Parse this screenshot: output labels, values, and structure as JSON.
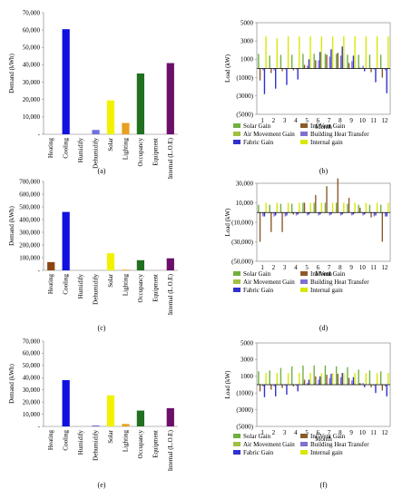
{
  "chart_data": [
    {
      "id": "a",
      "type": "bar",
      "caption": "(a)",
      "categories": [
        "Heating",
        "Cooling",
        "Humidify",
        "Dehumidify",
        "Solar",
        "Lighting",
        "Occupancy",
        "Equipment",
        "Internal (L.O.E)"
      ],
      "values": [
        0,
        60500,
        0,
        2500,
        19500,
        6500,
        35000,
        0,
        41000
      ],
      "colors": [
        "#8b4513",
        "#1010e0",
        "#7fb2e5",
        "#7070e0",
        "#f2f200",
        "#e8a020",
        "#207020",
        "#9090d0",
        "#6a0f6a"
      ],
      "ylabel": "Demand (kWh)",
      "ylim": [
        0,
        70000
      ],
      "yticks": [
        "-",
        "10,000",
        "20,000",
        "30,000",
        "40,000",
        "50,000",
        "60,000",
        "70,000"
      ]
    },
    {
      "id": "b",
      "type": "bar",
      "caption": "(b)",
      "xlabel": "Month",
      "ylabel": "Load (kW)",
      "ylim": [
        -5000,
        5000
      ],
      "yticks": [
        "(5000)",
        "(3000)",
        "(1000)",
        "1000",
        "3000",
        "5000"
      ],
      "categories": [
        "1",
        "2",
        "3",
        "4",
        "5",
        "6",
        "7",
        "8",
        "9",
        "10",
        "11",
        "12"
      ],
      "series": [
        {
          "name": "Solar Gain",
          "color": "#70b040",
          "values": [
            1600,
            1400,
            1500,
            1500,
            1600,
            1600,
            1600,
            1600,
            1500,
            1500,
            1500,
            1500
          ]
        },
        {
          "name": "Inf/Vent Gain",
          "color": "#8b5a2b",
          "values": [
            -1300,
            -500,
            -300,
            -200,
            400,
            900,
            1500,
            1700,
            600,
            100,
            -400,
            -1000
          ]
        },
        {
          "name": "Air Movement Gain",
          "color": "#a0c040",
          "values": [
            0,
            0,
            0,
            0,
            0,
            0,
            0,
            0,
            0,
            0,
            0,
            0
          ]
        },
        {
          "name": "Building Heat Transfer",
          "color": "#8070d0",
          "values": [
            -200,
            -200,
            -100,
            -100,
            300,
            900,
            1300,
            1400,
            800,
            300,
            -100,
            -200
          ]
        },
        {
          "name": "Fabric Gain",
          "color": "#3030d0",
          "values": [
            -2800,
            -2200,
            -1800,
            -1200,
            1000,
            1800,
            2100,
            2400,
            1400,
            -300,
            -1500,
            -2700
          ]
        },
        {
          "name": "Internal gain",
          "color": "#d8e800",
          "values": [
            3500,
            3300,
            3500,
            3500,
            3500,
            3500,
            3500,
            3500,
            3500,
            3500,
            3500,
            3500
          ]
        }
      ],
      "legend": [
        "Solar Gain",
        "Inf/Vent Gain",
        "Air Movement Gain",
        "Building Heat Transfer",
        "Fabric Gain",
        "Internal gain"
      ]
    },
    {
      "id": "c",
      "type": "bar",
      "caption": "(c)",
      "categories": [
        "Heating",
        "Cooling",
        "Humidify",
        "Dehumidify",
        "Solar",
        "Lighting",
        "Occupancy",
        "Equipment",
        "Internal (L.O.E)"
      ],
      "values": [
        65000,
        460000,
        0,
        0,
        135000,
        5000,
        80000,
        0,
        95000
      ],
      "colors": [
        "#8b4513",
        "#1010e0",
        "#7fb2e5",
        "#7070e0",
        "#f2f200",
        "#e8a020",
        "#207020",
        "#9090d0",
        "#6a0f6a"
      ],
      "ylabel": "Demand (kWh)",
      "ylim": [
        0,
        700000
      ],
      "yticks": [
        "-",
        "100,000",
        "200,000",
        "300,000",
        "400,000",
        "500,000",
        "600,000",
        "700,000"
      ]
    },
    {
      "id": "d",
      "type": "bar",
      "caption": "(d)",
      "xlabel": "Month",
      "ylabel": "Load (kW)",
      "ylim": [
        -50000,
        30000
      ],
      "yticks": [
        "(50,000)",
        "(30,000)",
        "(10,000)",
        "10,000",
        "30,000"
      ],
      "categories": [
        "1",
        "2",
        "3",
        "4",
        "5",
        "6",
        "7",
        "8",
        "9",
        "10",
        "11",
        "12"
      ],
      "series": [
        {
          "name": "Solar Gain",
          "color": "#70b040",
          "values": [
            8000,
            8000,
            9000,
            9000,
            10000,
            10000,
            10000,
            10000,
            9000,
            8000,
            8000,
            8000
          ]
        },
        {
          "name": "Inf/Vent Gain",
          "color": "#8b5a2b",
          "values": [
            -30000,
            -20000,
            -20000,
            -2000,
            10000,
            18000,
            27000,
            35000,
            15000,
            5000,
            -5000,
            -30000
          ]
        },
        {
          "name": "Air Movement Gain",
          "color": "#a0c040",
          "values": [
            0,
            0,
            0,
            0,
            0,
            0,
            0,
            0,
            0,
            0,
            0,
            0
          ]
        },
        {
          "name": "Building Heat Transfer",
          "color": "#8070d0",
          "values": [
            -4000,
            -4000,
            -4000,
            -3000,
            -3000,
            -3000,
            -3000,
            -3000,
            -3000,
            -3000,
            -4000,
            -4000
          ]
        },
        {
          "name": "Fabric Gain",
          "color": "#3030d0",
          "values": [
            -4000,
            -3000,
            -3000,
            -2000,
            -2000,
            -2000,
            -2000,
            -2000,
            -2000,
            -2000,
            -3000,
            -4000
          ]
        },
        {
          "name": "Internal gain",
          "color": "#d8e800",
          "values": [
            10000,
            10000,
            10000,
            10000,
            10000,
            10000,
            10000,
            10000,
            10000,
            10000,
            10000,
            10000
          ]
        }
      ],
      "legend": [
        "Solar Gain",
        "Inf/Vent Gain",
        "Air Movement Gain",
        "Building Heat Transfer",
        "Fabric Gain",
        "Internal gain"
      ]
    },
    {
      "id": "e",
      "type": "bar",
      "caption": "(e)",
      "categories": [
        "Heating",
        "Cooling",
        "Humidify",
        "Dehumidify",
        "Solar",
        "Lighting",
        "Occupancy",
        "Equipment",
        "Internal (L.O.E)"
      ],
      "values": [
        0,
        38000,
        0,
        800,
        25500,
        2000,
        13000,
        0,
        15000
      ],
      "colors": [
        "#8b4513",
        "#1010e0",
        "#7fb2e5",
        "#7070e0",
        "#f2f200",
        "#e8a020",
        "#207020",
        "#9090d0",
        "#6a0f6a"
      ],
      "ylabel": "Demand (kWh)",
      "ylim": [
        0,
        70000
      ],
      "yticks": [
        "-",
        "10,000",
        "20,000",
        "30,000",
        "40,000",
        "50,000",
        "60,000",
        "70,000"
      ]
    },
    {
      "id": "f",
      "type": "bar",
      "caption": "(f)",
      "xlabel": "Month",
      "ylabel": "Load (kW)",
      "ylim": [
        -5000,
        5000
      ],
      "yticks": [
        "(5000)",
        "(3000)",
        "(1000)",
        "1000",
        "3000",
        "5000"
      ],
      "categories": [
        "1",
        "2",
        "3",
        "4",
        "5",
        "6",
        "7",
        "8",
        "9",
        "10",
        "11",
        "12"
      ],
      "series": [
        {
          "name": "Solar Gain",
          "color": "#70b040",
          "values": [
            1600,
            1700,
            2000,
            2200,
            2300,
            2300,
            2300,
            2200,
            2100,
            1800,
            1700,
            1600
          ]
        },
        {
          "name": "Inf/Vent Gain",
          "color": "#8b5a2b",
          "values": [
            -800,
            -600,
            -400,
            -200,
            600,
            1000,
            1200,
            1300,
            800,
            200,
            -300,
            -700
          ]
        },
        {
          "name": "Air Movement Gain",
          "color": "#a0c040",
          "values": [
            0,
            0,
            0,
            0,
            0,
            0,
            0,
            0,
            0,
            0,
            0,
            0
          ]
        },
        {
          "name": "Building Heat Transfer",
          "color": "#8070d0",
          "values": [
            -200,
            -200,
            -100,
            -100,
            200,
            600,
            800,
            900,
            500,
            200,
            -100,
            -200
          ]
        },
        {
          "name": "Fabric Gain",
          "color": "#3030d0",
          "values": [
            -1500,
            -1400,
            -1200,
            -800,
            600,
            1000,
            1300,
            1400,
            900,
            -300,
            -1000,
            -1400
          ]
        },
        {
          "name": "Internal gain",
          "color": "#d8e800",
          "values": [
            1400,
            1400,
            1400,
            1400,
            1400,
            1400,
            1400,
            1400,
            1400,
            1400,
            1400,
            1400
          ]
        }
      ],
      "legend": [
        "Solar Gain",
        "Inf/Vent Gain",
        "Air Movement Gain",
        "Building Heat Transfer",
        "Fabric Gain",
        "Internal gain"
      ]
    }
  ]
}
